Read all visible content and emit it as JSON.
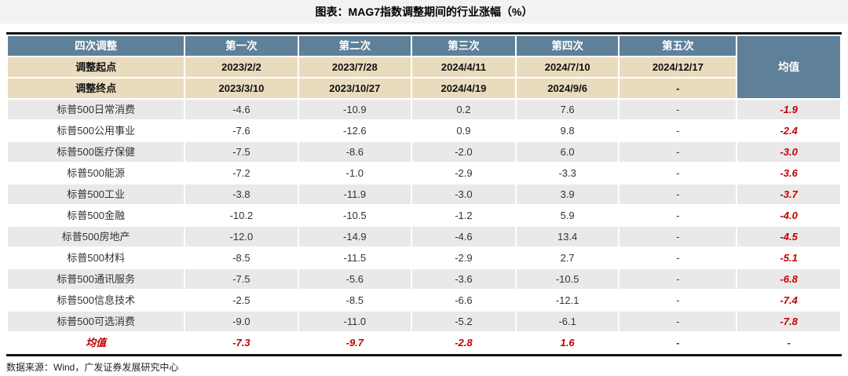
{
  "page": {
    "title": "图表：MAG7指数调整期间的行业涨幅（%）",
    "source": "数据来源：Wind，广发证券发展研究中心"
  },
  "colors": {
    "header_bg": "#5f8099",
    "subheader_bg": "#e9dcbe",
    "row_alt_bg": "#e9e9e9",
    "accent_red": "#c00000",
    "title_band_bg": "#f2f2f2",
    "table_border": "#111111"
  },
  "chart_data": {
    "type": "table",
    "title": "图表：MAG7指数调整期间的行业涨幅（%）",
    "header": [
      "四次调整",
      "第一次",
      "第二次",
      "第三次",
      "第四次",
      "第五次"
    ],
    "mean_header": "均值",
    "start_row": {
      "label": "调整起点",
      "values": [
        "2023/2/2",
        "2023/7/28",
        "2024/4/11",
        "2024/7/10",
        "2024/12/17"
      ]
    },
    "end_row": {
      "label": "调整终点",
      "values": [
        "2023/3/10",
        "2023/10/27",
        "2024/4/19",
        "2024/9/6",
        "-"
      ]
    },
    "rows": [
      {
        "label": "标普500日常消费",
        "values": [
          "-4.6",
          "-10.9",
          "0.2",
          "7.6",
          "-"
        ],
        "mean": "-1.9"
      },
      {
        "label": "标普500公用事业",
        "values": [
          "-7.6",
          "-12.6",
          "0.9",
          "9.8",
          "-"
        ],
        "mean": "-2.4"
      },
      {
        "label": "标普500医疗保健",
        "values": [
          "-7.5",
          "-8.6",
          "-2.0",
          "6.0",
          "-"
        ],
        "mean": "-3.0"
      },
      {
        "label": "标普500能源",
        "values": [
          "-7.2",
          "-1.0",
          "-2.9",
          "-3.3",
          "-"
        ],
        "mean": "-3.6"
      },
      {
        "label": "标普500工业",
        "values": [
          "-3.8",
          "-11.9",
          "-3.0",
          "3.9",
          "-"
        ],
        "mean": "-3.7"
      },
      {
        "label": "标普500金融",
        "values": [
          "-10.2",
          "-10.5",
          "-1.2",
          "5.9",
          "-"
        ],
        "mean": "-4.0"
      },
      {
        "label": "标普500房地产",
        "values": [
          "-12.0",
          "-14.9",
          "-4.6",
          "13.4",
          "-"
        ],
        "mean": "-4.5"
      },
      {
        "label": "标普500材料",
        "values": [
          "-8.5",
          "-11.5",
          "-2.9",
          "2.7",
          "-"
        ],
        "mean": "-5.1"
      },
      {
        "label": "标普500通讯服务",
        "values": [
          "-7.5",
          "-5.6",
          "-3.6",
          "-10.5",
          "-"
        ],
        "mean": "-6.8"
      },
      {
        "label": "标普500信息技术",
        "values": [
          "-2.5",
          "-8.5",
          "-6.6",
          "-12.1",
          "-"
        ],
        "mean": "-7.4"
      },
      {
        "label": "标普500可选消费",
        "values": [
          "-9.0",
          "-11.0",
          "-5.2",
          "-6.1",
          "-"
        ],
        "mean": "-7.8"
      }
    ],
    "mean_row": {
      "label": "均值",
      "values": [
        "-7.3",
        "-9.7",
        "-2.8",
        "1.6",
        "-"
      ],
      "mean": "-"
    }
  }
}
